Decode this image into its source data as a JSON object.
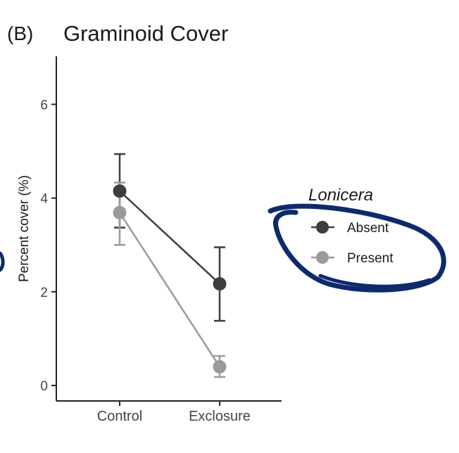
{
  "panel_label": "(B)",
  "chart_data": {
    "type": "line",
    "title": "Graminoid Cover",
    "xlabel": "",
    "ylabel": "Percent cover (%)",
    "categories": [
      "Control",
      "Exclosure"
    ],
    "ylim": [
      -0.3,
      7
    ],
    "yticks": [
      0,
      2,
      4,
      6
    ],
    "grid": false,
    "legend_title": "Lonicera",
    "legend_position": "right",
    "series": [
      {
        "name": "Absent",
        "color": "#3d3d3d",
        "values": [
          4.15,
          2.17
        ],
        "err_low": [
          3.37,
          1.38
        ],
        "err_high": [
          4.94,
          2.95
        ]
      },
      {
        "name": "Present",
        "color": "#9a9a9a",
        "values": [
          3.69,
          0.4
        ],
        "err_low": [
          3.0,
          0.18
        ],
        "err_high": [
          4.33,
          0.63
        ]
      }
    ],
    "annotation_color": "#0d2a6b"
  }
}
